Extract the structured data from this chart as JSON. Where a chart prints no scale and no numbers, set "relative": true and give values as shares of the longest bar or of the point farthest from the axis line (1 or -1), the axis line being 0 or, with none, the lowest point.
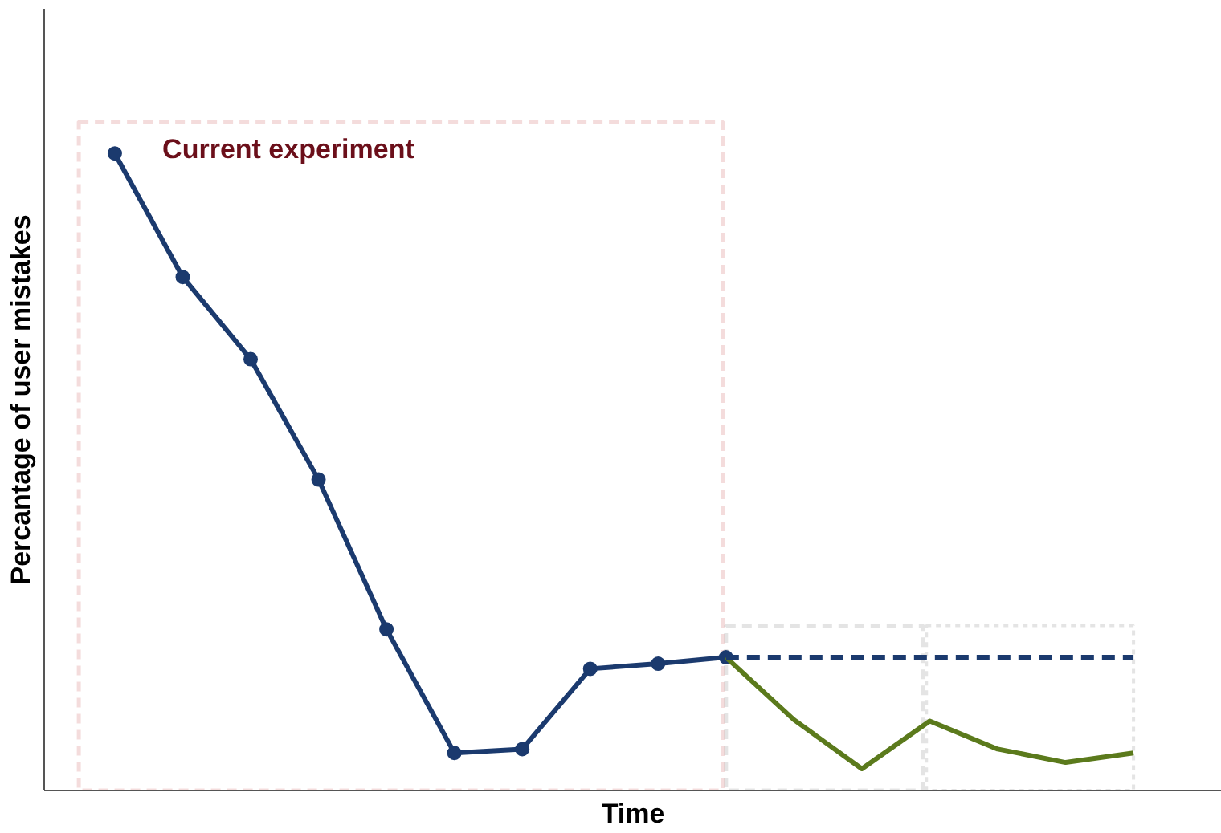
{
  "chart_data": {
    "type": "line",
    "xlabel": "Time",
    "ylabel": "Percantage of user mistakes",
    "relative": true,
    "categories": [
      null,
      null,
      null,
      null,
      null,
      null,
      null,
      null,
      null,
      null,
      null,
      null,
      null,
      null,
      null,
      null
    ],
    "annotations": [
      "Current experiment"
    ],
    "series": [
      {
        "color": "#1b3a6e",
        "marker": "circle",
        "line_style": "solid",
        "values": [
          1,
          0.806,
          0.677,
          0.488,
          0.253,
          0.059,
          0.065,
          0.191,
          0.199,
          0.209,
          null,
          null,
          null,
          null,
          null,
          null
        ]
      },
      {
        "color": "#5b7a1c",
        "marker": "none",
        "line_style": "solid",
        "values": [
          null,
          null,
          null,
          null,
          null,
          null,
          null,
          null,
          null,
          0.209,
          0.111,
          0.034,
          0.109,
          0.065,
          0.044,
          0.059
        ]
      },
      {
        "color": "#1b3a6e",
        "marker": "none",
        "line_style": "dashed",
        "values": [
          null,
          null,
          null,
          null,
          null,
          null,
          null,
          null,
          null,
          0.209,
          0.209,
          0.209,
          0.209,
          0.209,
          0.209,
          0.209
        ]
      }
    ]
  }
}
